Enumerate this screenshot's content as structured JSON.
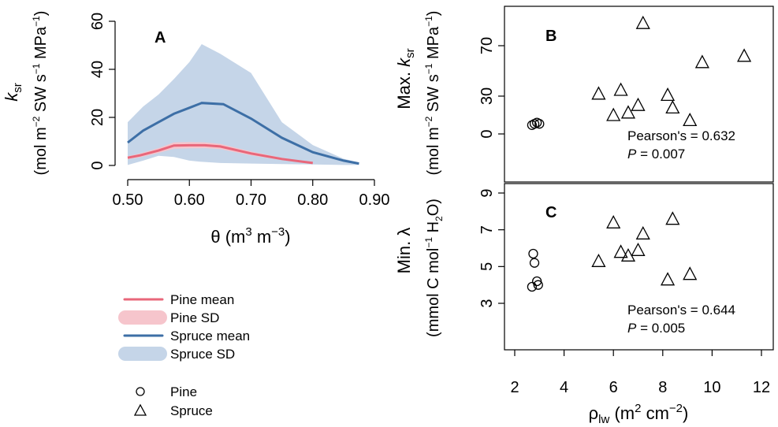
{
  "chart_data": [
    {
      "panel": "A",
      "type": "line",
      "panel_label": "A",
      "xlabel": "θ (m³ m⁻³)",
      "ylabel": "ksr",
      "ylabel_units": "(mol m⁻² SW s⁻¹ MPa⁻¹)",
      "xlim": [
        0.5,
        0.9
      ],
      "ylim": [
        0,
        60
      ],
      "x_ticks": [
        "0.50",
        "0.60",
        "0.70",
        "0.80",
        "0.90"
      ],
      "y_ticks": [
        "0",
        "20",
        "40",
        "60"
      ],
      "series": [
        {
          "name": "Pine mean",
          "color": "#e8677a",
          "x": [
            0.5,
            0.52,
            0.55,
            0.575,
            0.6,
            0.625,
            0.65,
            0.7,
            0.75,
            0.8
          ],
          "y": [
            3.2,
            4.2,
            6.2,
            8.3,
            8.4,
            8.4,
            7.9,
            5.0,
            2.7,
            1.0
          ]
        },
        {
          "name": "Pine SD",
          "color": "#f6c5cc",
          "x": [
            0.5,
            0.52,
            0.55,
            0.575,
            0.6,
            0.625,
            0.65,
            0.7,
            0.75,
            0.8
          ],
          "upper": [
            3.8,
            5.0,
            7.2,
            9.6,
            9.7,
            9.6,
            9.0,
            5.8,
            3.2,
            1.2
          ],
          "lower": [
            2.6,
            3.4,
            5.2,
            7.0,
            7.1,
            7.2,
            6.8,
            4.2,
            2.2,
            0.8
          ]
        },
        {
          "name": "Spruce mean",
          "color": "#3d6fa6",
          "x": [
            0.5,
            0.525,
            0.55,
            0.575,
            0.6,
            0.62,
            0.655,
            0.7,
            0.75,
            0.8,
            0.85,
            0.875
          ],
          "y": [
            9.5,
            14.5,
            18.0,
            21.5,
            24.0,
            26.0,
            25.5,
            19.5,
            11.5,
            5.5,
            2.0,
            0.8
          ]
        },
        {
          "name": "Spruce SD",
          "color": "#c5d5e8",
          "x": [
            0.5,
            0.525,
            0.55,
            0.575,
            0.6,
            0.62,
            0.65,
            0.7,
            0.75,
            0.8,
            0.85,
            0.875
          ],
          "upper": [
            18.0,
            24.5,
            29.5,
            36.0,
            43.0,
            50.5,
            46.5,
            38.5,
            18.0,
            8.5,
            2.8,
            1.2
          ],
          "lower": [
            0.2,
            2.0,
            4.0,
            3.5,
            2.0,
            1.5,
            1.0,
            0.8,
            0.6,
            0.4,
            0.2,
            0.2
          ]
        }
      ]
    },
    {
      "panel": "B",
      "type": "scatter",
      "panel_label": "B",
      "ylabel": "Max. ksr",
      "ylabel_units": "(mol m⁻² SW s⁻¹ MPa⁻¹)",
      "xlim": [
        1.5,
        12.5
      ],
      "ylim": [
        -30,
        95
      ],
      "y_ticks": [
        "0",
        "30",
        "70"
      ],
      "series": [
        {
          "name": "Pine",
          "marker": "circle",
          "x": [
            2.7,
            2.8,
            2.9,
            3.0
          ],
          "y": [
            7,
            8,
            9,
            8
          ]
        },
        {
          "name": "Spruce",
          "marker": "triangle",
          "x": [
            5.4,
            6.0,
            6.3,
            6.6,
            7.0,
            7.2,
            8.2,
            8.4,
            9.1,
            9.6,
            11.3
          ],
          "y": [
            32,
            15,
            35,
            17,
            23,
            88,
            31,
            21,
            11,
            57,
            62
          ]
        }
      ],
      "annotation": [
        "Pearson's = 0.632",
        "P = 0.007"
      ]
    },
    {
      "panel": "C",
      "type": "scatter",
      "panel_label": "C",
      "xlabel": "ρlw (m² cm⁻²)",
      "ylabel": "Min. λ",
      "ylabel_units": "(mmol C mol⁻¹ H₂O)",
      "xlim": [
        1.5,
        12.5
      ],
      "ylim": [
        1.8,
        9.3
      ],
      "x_ticks": [
        "2",
        "4",
        "6",
        "8",
        "10",
        "12"
      ],
      "y_ticks": [
        "3",
        "5",
        "7",
        "9"
      ],
      "series": [
        {
          "name": "Pine",
          "marker": "circle",
          "x": [
            2.75,
            2.8,
            2.9,
            2.95,
            2.7
          ],
          "y": [
            5.7,
            5.2,
            4.2,
            4.0,
            3.9
          ]
        },
        {
          "name": "Spruce",
          "marker": "triangle",
          "x": [
            5.4,
            6.0,
            6.3,
            6.6,
            7.0,
            7.2,
            8.2,
            8.4,
            9.1
          ],
          "y": [
            5.3,
            7.4,
            5.8,
            5.6,
            5.9,
            6.8,
            4.3,
            7.6,
            4.6
          ]
        }
      ],
      "annotation": [
        "Pearson's = 0.644",
        "P = 0.005"
      ]
    }
  ],
  "legend_lines": [
    {
      "label": "Pine mean",
      "color": "#e8677a",
      "kind": "line"
    },
    {
      "label": "Pine SD",
      "color": "#f6c5cc",
      "kind": "band"
    },
    {
      "label": "Spruce mean",
      "color": "#3d6fa6",
      "kind": "line"
    },
    {
      "label": "Spruce SD",
      "color": "#c5d5e8",
      "kind": "band"
    }
  ],
  "legend_markers": [
    {
      "label": "Pine",
      "marker": "circle"
    },
    {
      "label": "Spruce",
      "marker": "triangle"
    }
  ]
}
